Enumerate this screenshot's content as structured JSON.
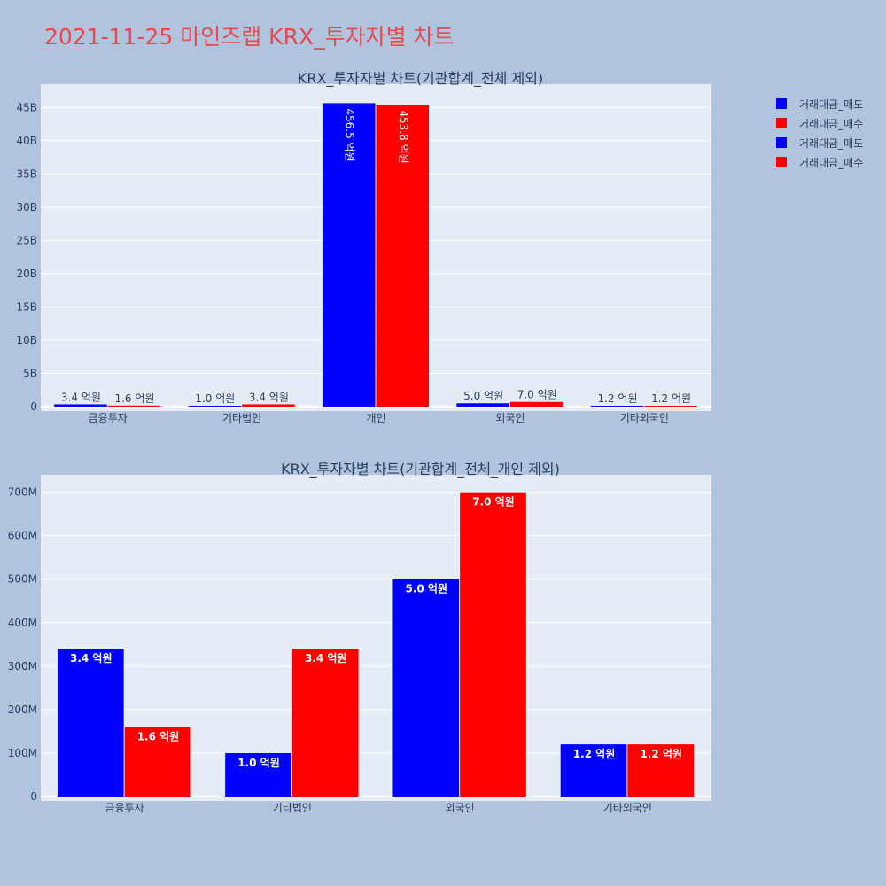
{
  "title": "2021-11-25 마인즈랩 KRX_투자자별 차트",
  "colors": {
    "sell": "#0000ff",
    "buy": "#ff0000",
    "plot_bg": "#e5ecf6",
    "page_bg": "#b0c4de",
    "title": "#e8484f",
    "axis_text": "#2a3f5f"
  },
  "legend": [
    {
      "label": "거래대금_매도",
      "color": "#0000ff"
    },
    {
      "label": "거래대금_매수",
      "color": "#ff0000"
    },
    {
      "label": "거래대금_매도",
      "color": "#0000ff"
    },
    {
      "label": "거래대금_매수",
      "color": "#ff0000"
    }
  ],
  "chart_data": [
    {
      "type": "bar",
      "title": "KRX_투자자별 차트(기관합계_전체 제외)",
      "categories": [
        "금융투자",
        "기타법인",
        "개인",
        "외국인",
        "기타외국인"
      ],
      "series": [
        {
          "name": "거래대금_매도",
          "values": [
            340000000,
            100000000,
            45650000000,
            500000000,
            120000000
          ],
          "labels": [
            "3.4 억원",
            "1.0 억원",
            "456.5 억원",
            "5.0 억원",
            "1.2 억원"
          ]
        },
        {
          "name": "거래대금_매수",
          "values": [
            160000000,
            340000000,
            45380000000,
            700000000,
            120000000
          ],
          "labels": [
            "1.6 억원",
            "3.4 억원",
            "453.8 억원",
            "7.0 억원",
            "1.2 억원"
          ]
        }
      ],
      "ylim": [
        0,
        48500000000
      ],
      "yticks": [
        0,
        5000000000,
        10000000000,
        15000000000,
        20000000000,
        25000000000,
        30000000000,
        35000000000,
        40000000000,
        45000000000
      ],
      "ytick_labels": [
        "0",
        "5B",
        "10B",
        "15B",
        "20B",
        "25B",
        "30B",
        "35B",
        "40B",
        "45B"
      ],
      "grid": true
    },
    {
      "type": "bar",
      "title": "KRX_투자자별 차트(기관합계_전체_개인 제외)",
      "categories": [
        "금융투자",
        "기타법인",
        "외국인",
        "기타외국인"
      ],
      "series": [
        {
          "name": "거래대금_매도",
          "values": [
            340000000,
            100000000,
            500000000,
            120000000
          ],
          "labels": [
            "3.4 억원",
            "1.0 억원",
            "5.0 억원",
            "1.2 억원"
          ]
        },
        {
          "name": "거래대금_매수",
          "values": [
            160000000,
            340000000,
            700000000,
            120000000
          ],
          "labels": [
            "1.6 억원",
            "3.4 억원",
            "7.0 억원",
            "1.2 억원"
          ]
        }
      ],
      "ylim": [
        0,
        740000000
      ],
      "yticks": [
        0,
        100000000,
        200000000,
        300000000,
        400000000,
        500000000,
        600000000,
        700000000
      ],
      "ytick_labels": [
        "0",
        "100M",
        "200M",
        "300M",
        "400M",
        "500M",
        "600M",
        "700M"
      ],
      "grid": true
    }
  ]
}
